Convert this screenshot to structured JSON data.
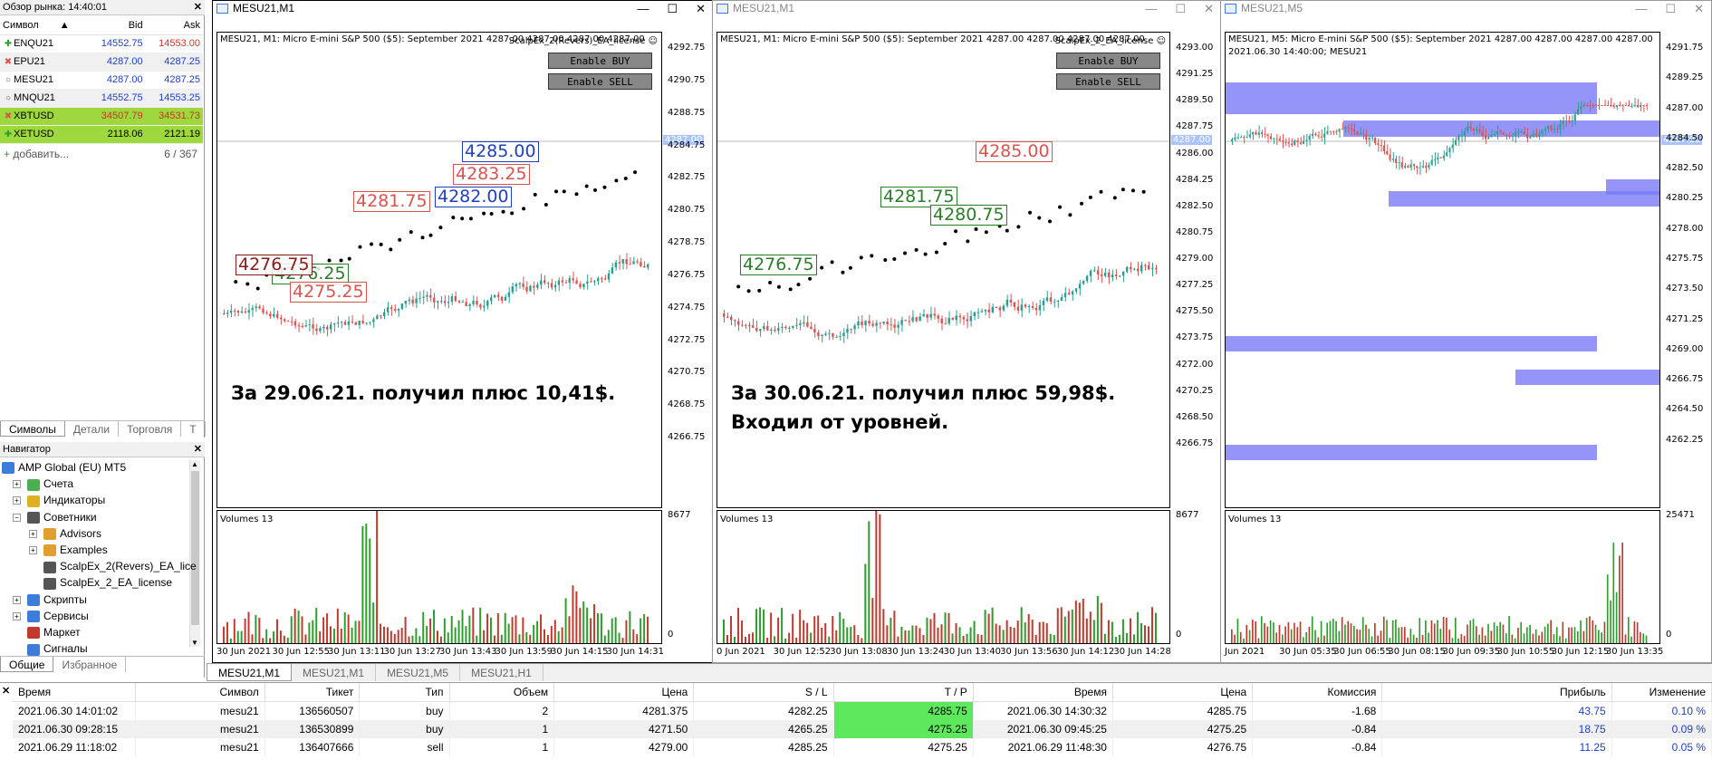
{
  "market_watch": {
    "title": "Обзор рынка: 14:40:01",
    "col_symbol": "Символ",
    "col_bid": "Bid",
    "col_ask": "Ask",
    "rows": [
      {
        "symbol": "ENQU21",
        "bid": "14552.75",
        "ask": "14553.00",
        "dir": "up"
      },
      {
        "symbol": "EPU21",
        "bid": "4287.00",
        "ask": "4287.25",
        "dir": "down"
      },
      {
        "symbol": "MESU21",
        "bid": "4287.00",
        "ask": "4287.25",
        "dir": "none"
      },
      {
        "symbol": "MNQU21",
        "bid": "14552.75",
        "ask": "14553.25",
        "dir": "none"
      },
      {
        "symbol": "XBTUSD",
        "bid": "34507.79",
        "ask": "34531.73",
        "dir": "down"
      },
      {
        "symbol": "XETUSD",
        "bid": "2118.06",
        "ask": "2121.19",
        "dir": "up"
      }
    ],
    "add_label": "добавить...",
    "count": "6 / 367",
    "tabs": [
      "Символы",
      "Детали",
      "Торговля",
      "Т"
    ]
  },
  "navigator": {
    "title": "Навигатор",
    "items": [
      {
        "label": "AMP Global (EU) MT5"
      },
      {
        "label": "Счета"
      },
      {
        "label": "Индикаторы"
      },
      {
        "label": "Советники"
      },
      {
        "label": "Advisors"
      },
      {
        "label": "Examples"
      },
      {
        "label": "ScalpEx_2(Revers)_EA_lice"
      },
      {
        "label": "ScalpEx_2_EA_license"
      },
      {
        "label": "Скрипты"
      },
      {
        "label": "Сервисы"
      },
      {
        "label": "Маркет"
      },
      {
        "label": "Сигналы"
      }
    ],
    "tabs": [
      "Общие",
      "Избранное"
    ]
  },
  "charts": [
    {
      "window_title": "MESU21,M1",
      "header": "MESU21, M1:  Micro E-mini S&P 500 ($5): September 2021  4287.00 4287.00 4287.00 4287.00",
      "ea_name": "ScalpEx_2(Revers)_EA_license",
      "btn_buy": "Enable BUY",
      "btn_sell": "Enable SELL",
      "price_labels": [
        "4292.75",
        "4290.75",
        "4288.75",
        "4284.75",
        "4282.75",
        "4280.75",
        "4278.75",
        "4276.75",
        "4274.75",
        "4272.75",
        "4270.75",
        "4268.75",
        "4266.75"
      ],
      "cur_price": "4287.00",
      "note_line1": "За 29.06.21. получил плюс 10,41$.",
      "note_line2": "",
      "volumes_label": "Volumes 13",
      "vol_max": "8677",
      "vol_zero": "0",
      "time_labels": [
        "30 Jun 2021",
        "30 Jun 12:55",
        "30 Jun 13:11",
        "30 Jun 13:27",
        "30 Jun 13:43",
        "30 Jun 13:59",
        "30 Jun 14:15",
        "30 Jun 14:31"
      ],
      "level_tags": [
        "4285.00",
        "4283.25",
        "4282.00",
        "4281.75",
        "4276.25",
        "4275.25",
        "4276.75"
      ]
    },
    {
      "window_title": "MESU21,M1",
      "header": "MESU21, M1:  Micro E-mini S&P 500 ($5): September 2021  4287.00 4287.00 4287.00 4287.00",
      "ea_name": "ScalpEx_2_EA_license",
      "btn_buy": "Enable BUY",
      "btn_sell": "Enable SELL",
      "price_labels": [
        "4293.00",
        "4291.25",
        "4289.50",
        "4287.75",
        "4286.00",
        "4284.25",
        "4282.50",
        "4280.75",
        "4279.00",
        "4277.25",
        "4275.50",
        "4273.75",
        "4272.00",
        "4270.25",
        "4268.50",
        "4266.75"
      ],
      "cur_price": "4287.00",
      "note_line1": "За 30.06.21. получил плюс 59,98$.",
      "note_line2": "Входил от уровней.",
      "volumes_label": "Volumes 13",
      "vol_max": "8677",
      "vol_zero": "0",
      "time_labels": [
        "0 Jun 2021",
        "30 Jun 12:52",
        "30 Jun 13:08",
        "30 Jun 13:24",
        "30 Jun 13:40",
        "30 Jun 13:56",
        "30 Jun 14:12",
        "30 Jun 14:28"
      ],
      "level_tags": [
        "4285.00",
        "4281.75",
        "4280.75",
        "4276.75"
      ]
    },
    {
      "window_title": "MESU21,M5",
      "header": "MESU21, M5:  Micro E-mini S&P 500 ($5): September 2021  4287.00 4287.00 4287.00 4287.00",
      "subheader": "2021.06.30 14:40:00; MESU21",
      "price_labels": [
        "4291.75",
        "4289.25",
        "4287.00",
        "4284.50",
        "4282.50",
        "4280.25",
        "4278.00",
        "4275.75",
        "4273.50",
        "4271.25",
        "4269.00",
        "4266.75",
        "4264.50",
        "4262.25"
      ],
      "cur_price": "4287.00",
      "volumes_label": "Volumes 13",
      "vol_max": "25471",
      "vol_zero": "0",
      "time_labels": [
        "Jun 2021",
        "30 Jun 05:35",
        "30 Jun 06:55",
        "30 Jun 08:15",
        "30 Jun 09:35",
        "30 Jun 10:55",
        "30 Jun 12:15",
        "30 Jun 13:35"
      ]
    }
  ],
  "chart_tabs": [
    "MESU21,M1",
    "MESU21,M1",
    "MESU21,M5",
    "MESU21,H1"
  ],
  "trades": {
    "headers": [
      "Время",
      "Символ",
      "Тикет",
      "Тип",
      "Объем",
      "Цена",
      "S / L",
      "T / P",
      "Время",
      "Цена",
      "Комиссия",
      "Прибыль",
      "Изменение"
    ],
    "rows": [
      [
        "2021.06.30 14:01:02",
        "mesu21",
        "136560507",
        "buy",
        "2",
        "4281.375",
        "4282.25",
        "4285.75",
        "2021.06.30 14:30:32",
        "4285.75",
        "-1.68",
        "43.75",
        "0.10 %"
      ],
      [
        "2021.06.30 09:28:15",
        "mesu21",
        "136530899",
        "buy",
        "1",
        "4271.50",
        "4265.25",
        "4275.25",
        "2021.06.30 09:45:25",
        "4275.25",
        "-0.84",
        "18.75",
        "0.09 %"
      ],
      [
        "2021.06.29 11:18:02",
        "mesu21",
        "136407666",
        "sell",
        "1",
        "4279.00",
        "4285.25",
        "4275.25",
        "2021.06.29 11:48:30",
        "4276.75",
        "-0.84",
        "11.25",
        "0.05 %"
      ]
    ]
  },
  "colors": {
    "up": "#2a9d8f",
    "down": "#d9534f",
    "accent_green": "#9ed83d",
    "tp_green": "#5ee85e",
    "zone_blue": "#7b7bf5"
  }
}
